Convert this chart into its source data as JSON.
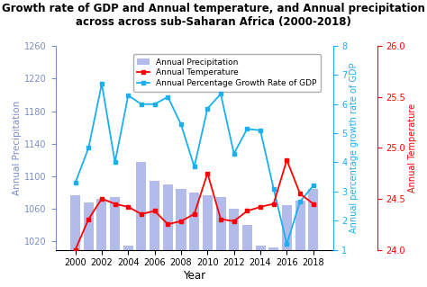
{
  "years": [
    2000,
    2001,
    2002,
    2003,
    2004,
    2005,
    2006,
    2007,
    2008,
    2009,
    2010,
    2011,
    2012,
    2013,
    2014,
    2015,
    2016,
    2017,
    2018
  ],
  "precipitation": [
    1077,
    1068,
    1072,
    1075,
    1015,
    1118,
    1095,
    1090,
    1085,
    1080,
    1077,
    1075,
    1060,
    1040,
    1015,
    1013,
    1065,
    1070,
    1085
  ],
  "temperature": [
    24.0,
    24.3,
    24.5,
    24.45,
    24.42,
    24.35,
    24.38,
    24.25,
    24.28,
    24.35,
    24.75,
    24.3,
    24.28,
    24.38,
    24.42,
    24.45,
    24.88,
    24.55,
    24.45
  ],
  "gdp_growth": [
    3.3,
    4.5,
    6.7,
    4.0,
    6.3,
    6.0,
    6.0,
    6.25,
    5.3,
    3.85,
    5.85,
    6.35,
    4.3,
    5.15,
    5.1,
    3.1,
    1.2,
    2.65,
    3.2
  ],
  "title": "Growth rate of GDP and Annual temperature, and Annual precipitation\nacross across sub-Saharan Africa (2000-2018)",
  "xlabel": "Year",
  "ylabel_left": "Annual Precipitation",
  "ylabel_right_gdp": "Annual percentage growth rate of GDP",
  "ylabel_right_temp": "Annual Temperature",
  "bar_color": "#aab4e8",
  "line_temp_color": "#ff0000",
  "line_gdp_color": "#1ab0f0",
  "ylim_precip": [
    1010,
    1260
  ],
  "ylim_gdp": [
    1,
    8
  ],
  "ylim_temp": [
    24.0,
    26.0
  ],
  "legend_labels": [
    "Annual Precipitation",
    "Annual Temperature",
    "Annual Percentage Growth Rate of GDP"
  ],
  "xticks": [
    2000,
    2002,
    2004,
    2006,
    2008,
    2010,
    2012,
    2014,
    2016,
    2018
  ],
  "yticks_precip": [
    1020,
    1060,
    1100,
    1140,
    1180,
    1220,
    1260
  ],
  "yticks_gdp": [
    1,
    2,
    3,
    4,
    5,
    6,
    7,
    8
  ],
  "yticks_temp": [
    24.0,
    24.5,
    25.0,
    25.5,
    26.0
  ],
  "left_label_color": "#7b8cc9",
  "title_fontsize": 8.5,
  "axis_label_fontsize": 7.5,
  "tick_fontsize": 7,
  "legend_fontsize": 6.5
}
